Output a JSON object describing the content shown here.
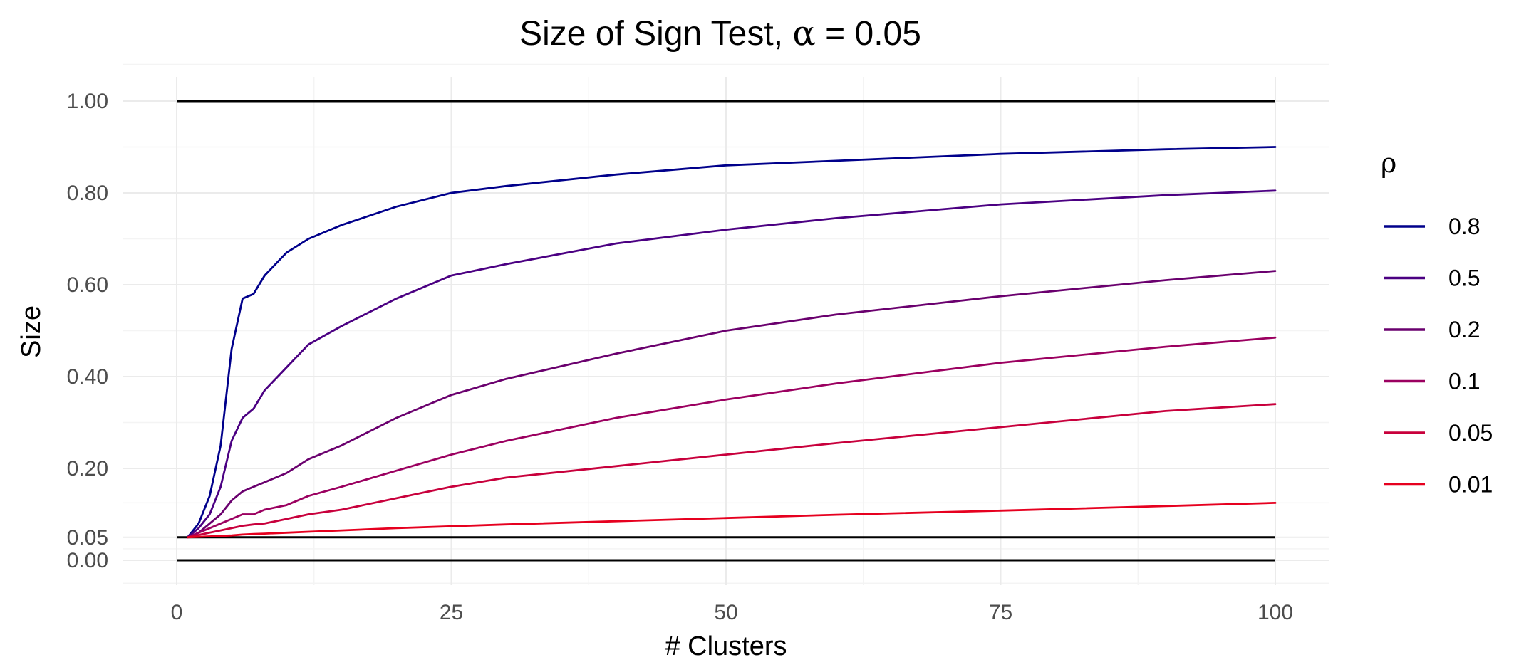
{
  "chart_data": {
    "type": "line",
    "title": "Size of Sign Test, α = 0.05",
    "title_prefix": "Size of Sign Test, ",
    "title_symbol": "α",
    "title_suffix": " = 0.05",
    "xlabel": "# Clusters",
    "ylabel": "Size",
    "xlim": [
      0,
      100
    ],
    "ylim": [
      0,
      1
    ],
    "x_ticks": [
      0,
      25,
      50,
      75,
      100
    ],
    "x_tick_labels": [
      "0",
      "25",
      "50",
      "75",
      "100"
    ],
    "y_ticks": [
      0,
      0.05,
      0.2,
      0.4,
      0.6,
      0.8,
      1.0
    ],
    "y_tick_labels": [
      "0.00",
      "0.05",
      "0.20",
      "0.40",
      "0.60",
      "0.80",
      "1.00"
    ],
    "grid": true,
    "legend_title": "ρ",
    "legend_position": "right",
    "reference_lines": [
      0,
      0.05,
      1.0
    ],
    "x": [
      1,
      2,
      3,
      4,
      5,
      6,
      7,
      8,
      10,
      12,
      15,
      20,
      25,
      30,
      40,
      50,
      60,
      75,
      90,
      100
    ],
    "series": [
      {
        "name": "0.8",
        "color": "#00008b",
        "values": [
          0.05,
          0.08,
          0.14,
          0.25,
          0.46,
          0.57,
          0.58,
          0.62,
          0.67,
          0.7,
          0.73,
          0.77,
          0.8,
          0.815,
          0.84,
          0.86,
          0.87,
          0.885,
          0.895,
          0.9
        ]
      },
      {
        "name": "0.5",
        "color": "#4b0082",
        "values": [
          0.05,
          0.07,
          0.1,
          0.16,
          0.26,
          0.31,
          0.33,
          0.37,
          0.42,
          0.47,
          0.51,
          0.57,
          0.62,
          0.645,
          0.69,
          0.72,
          0.745,
          0.775,
          0.795,
          0.805
        ]
      },
      {
        "name": "0.2",
        "color": "#6a006e",
        "values": [
          0.05,
          0.06,
          0.08,
          0.1,
          0.13,
          0.15,
          0.16,
          0.17,
          0.19,
          0.22,
          0.25,
          0.31,
          0.36,
          0.395,
          0.45,
          0.5,
          0.535,
          0.575,
          0.61,
          0.63
        ]
      },
      {
        "name": "0.1",
        "color": "#9b0060",
        "values": [
          0.05,
          0.06,
          0.07,
          0.08,
          0.09,
          0.1,
          0.1,
          0.11,
          0.12,
          0.14,
          0.16,
          0.195,
          0.23,
          0.26,
          0.31,
          0.35,
          0.385,
          0.43,
          0.465,
          0.485
        ]
      },
      {
        "name": "0.05",
        "color": "#c8003c",
        "values": [
          0.05,
          0.055,
          0.06,
          0.065,
          0.07,
          0.075,
          0.078,
          0.08,
          0.09,
          0.1,
          0.11,
          0.135,
          0.16,
          0.18,
          0.205,
          0.23,
          0.255,
          0.29,
          0.325,
          0.34
        ]
      },
      {
        "name": "0.01",
        "color": "#e6001f",
        "values": [
          0.05,
          0.051,
          0.052,
          0.053,
          0.054,
          0.056,
          0.057,
          0.058,
          0.06,
          0.062,
          0.065,
          0.07,
          0.074,
          0.078,
          0.085,
          0.092,
          0.099,
          0.108,
          0.118,
          0.125
        ]
      }
    ]
  }
}
